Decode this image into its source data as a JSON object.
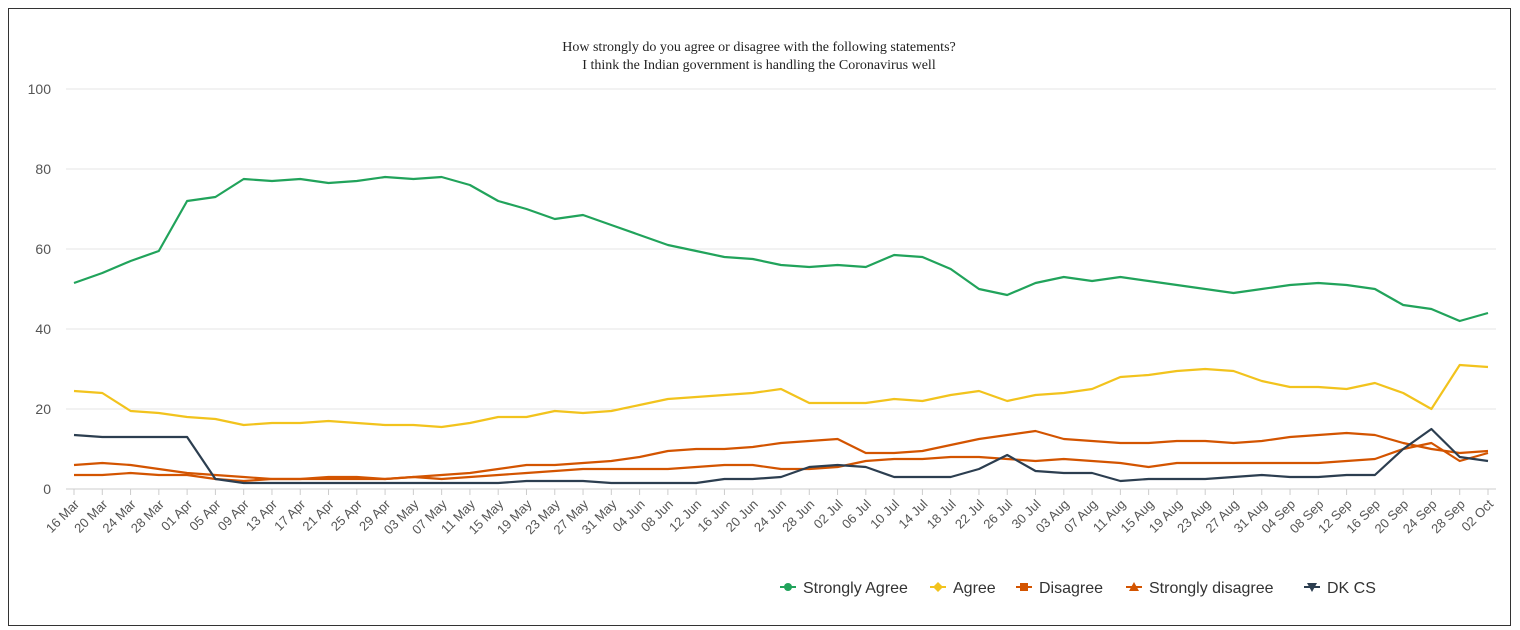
{
  "chart_data": {
    "type": "line",
    "title": "How strongly do you agree or disagree with the following statements?",
    "subtitle": "I think the Indian government is handling the Coronavirus well",
    "ylim": [
      0,
      100
    ],
    "yticks": [
      "0",
      "20",
      "40",
      "60",
      "80",
      "100"
    ],
    "grid": "horizontal",
    "legend_position": "bottom-right",
    "x_tick_labels": [
      "16 Mar",
      "20 Mar",
      "24 Mar",
      "28 Mar",
      "01 Apr",
      "05 Apr",
      "09 Apr",
      "13 Apr",
      "17 Apr",
      "21 Apr",
      "25 Apr",
      "29 Apr",
      "03 May",
      "07 May",
      "11 May",
      "15 May",
      "19 May",
      "23 May",
      "27 May",
      "31 May",
      "04 Jun",
      "08 Jun",
      "12 Jun",
      "16 Jun",
      "20 Jun",
      "24 Jun",
      "28 Jun",
      "02 Jul",
      "06 Jul",
      "10 Jul",
      "14 Jul",
      "18 Jul",
      "22 Jul",
      "26 Jul",
      "30 Jul",
      "03 Aug",
      "07 Aug",
      "11 Aug",
      "15 Aug",
      "19 Aug",
      "23 Aug",
      "27 Aug",
      "31 Aug",
      "04 Sep",
      "08 Sep",
      "12 Sep",
      "16 Sep",
      "20 Sep",
      "24 Sep",
      "28 Sep",
      "02 Oct"
    ],
    "series": [
      {
        "name": "Strongly Agree",
        "color": "#21a35b",
        "marker": "circle",
        "values": [
          51.5,
          54,
          57,
          59.5,
          72,
          73,
          77.5,
          77,
          77.5,
          76.5,
          77,
          78,
          77.5,
          78,
          76,
          72,
          70,
          67.5,
          68.5,
          66,
          63.5,
          61,
          59.5,
          58,
          57.5,
          56,
          55.5,
          56,
          55.5,
          58.5,
          58,
          55,
          50,
          48.5,
          51.5,
          53,
          52,
          53,
          52,
          51,
          50,
          49,
          50,
          51,
          51.5,
          51,
          50,
          46,
          45,
          42,
          44
        ]
      },
      {
        "name": "Agree",
        "color": "#f2c31d",
        "marker": "diamond",
        "values": [
          24.5,
          24,
          19.5,
          19,
          18,
          17.5,
          16,
          16.5,
          16.5,
          17,
          16.5,
          16,
          16,
          15.5,
          16.5,
          18,
          18,
          19.5,
          19,
          19.5,
          21,
          22.5,
          23,
          23.5,
          24,
          25,
          21.5,
          21.5,
          21.5,
          22.5,
          22,
          23.5,
          24.5,
          22,
          23.5,
          24,
          25,
          28,
          28.5,
          29.5,
          30,
          29.5,
          27,
          25.5,
          25.5,
          25,
          26.5,
          24,
          20,
          31,
          30.5
        ]
      },
      {
        "name": "Disagree",
        "color": "#d35400",
        "marker": "square",
        "values": [
          6,
          6.5,
          6,
          5,
          4,
          3.5,
          3,
          2.5,
          2.5,
          2.5,
          2.5,
          2.5,
          3,
          3.5,
          4,
          5,
          6,
          6,
          6.5,
          7,
          8,
          9.5,
          10,
          10,
          10.5,
          11.5,
          12,
          12.5,
          9,
          9,
          9.5,
          11,
          12.5,
          13.5,
          14.5,
          12.5,
          12,
          11.5,
          11.5,
          12,
          12,
          11.5,
          12,
          13,
          13.5,
          14,
          13.5,
          11.5,
          10,
          9,
          9.5
        ]
      },
      {
        "name": "Strongly disagree",
        "color": "#d35400",
        "marker": "triangle",
        "values": [
          3.5,
          3.5,
          4,
          3.5,
          3.5,
          2.5,
          2,
          2.5,
          2.5,
          3,
          3,
          2.5,
          3,
          2.5,
          3,
          3.5,
          4,
          4.5,
          5,
          5,
          5,
          5,
          5.5,
          6,
          6,
          5,
          5,
          5.5,
          7,
          7.5,
          7.5,
          8,
          8,
          7.5,
          7,
          7.5,
          7,
          6.5,
          5.5,
          6.5,
          6.5,
          6.5,
          6.5,
          6.5,
          6.5,
          7,
          7.5,
          10,
          11.5,
          7,
          9
        ]
      },
      {
        "name": "DK CS",
        "color": "#2c3e50",
        "marker": "triangle-down",
        "values": [
          13.5,
          13,
          13,
          13,
          13,
          2.5,
          1.5,
          1.5,
          1.5,
          1.5,
          1.5,
          1.5,
          1.5,
          1.5,
          1.5,
          1.5,
          2,
          2,
          2,
          1.5,
          1.5,
          1.5,
          1.5,
          2.5,
          2.5,
          3,
          5.5,
          6,
          5.5,
          3,
          3,
          3,
          5,
          8.5,
          4.5,
          4,
          4,
          2,
          2.5,
          2.5,
          2.5,
          3,
          3.5,
          3,
          3,
          3.5,
          3.5,
          10,
          15,
          8,
          7
        ]
      }
    ]
  }
}
